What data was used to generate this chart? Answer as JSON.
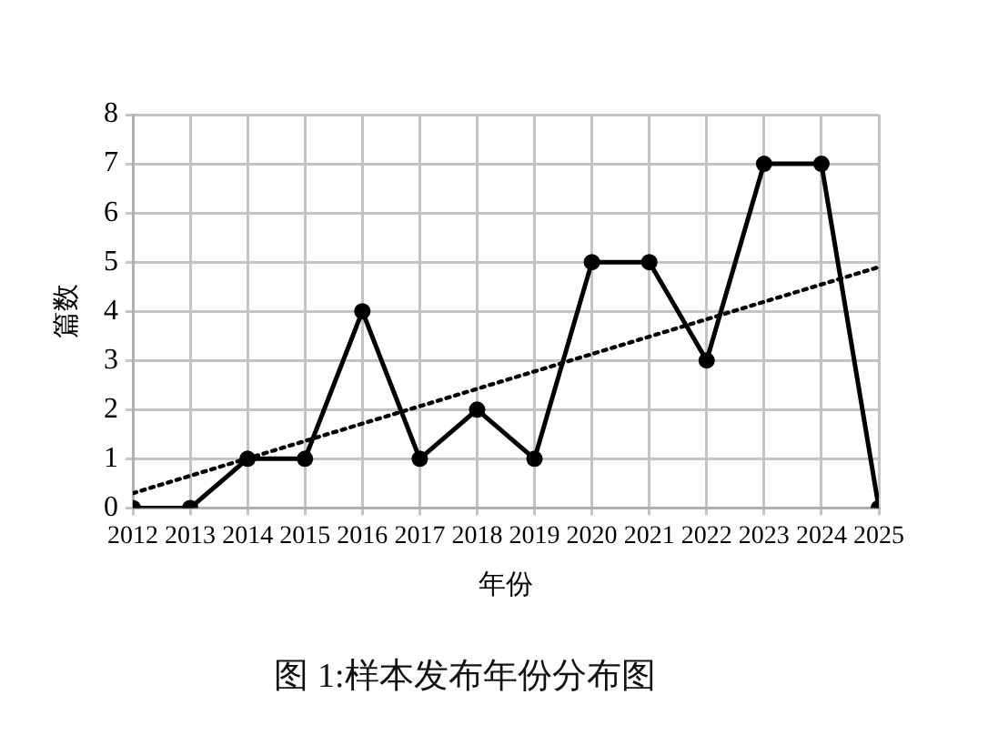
{
  "chart_data": {
    "type": "line",
    "title": "图 1:样本发布年份分布图",
    "xlabel": "年份",
    "ylabel": "篇数",
    "x": [
      2012,
      2013,
      2014,
      2015,
      2016,
      2017,
      2018,
      2019,
      2020,
      2021,
      2022,
      2023,
      2024,
      2025
    ],
    "series": [
      {
        "color": "#000000",
        "values": [
          0,
          0,
          1,
          1,
          4,
          1,
          2,
          1,
          5,
          5,
          3,
          7,
          7,
          0
        ],
        "marker": "circle",
        "line_style": "solid"
      },
      {
        "type": "line",
        "x": [
          2012,
          2025
        ],
        "values": [
          0.3,
          4.9
        ],
        "color": "#000000",
        "marker": "none",
        "line_style": "dotted"
      }
    ],
    "xlim": [
      2012,
      2025
    ],
    "xticks": [
      2012,
      2013,
      2014,
      2015,
      2016,
      2017,
      2018,
      2019,
      2020,
      2021,
      2022,
      2023,
      2024,
      2025
    ],
    "ylim": [
      0,
      8
    ],
    "yticks": [
      0,
      1,
      2,
      3,
      4,
      5,
      6,
      7,
      8
    ],
    "grid": true
  }
}
